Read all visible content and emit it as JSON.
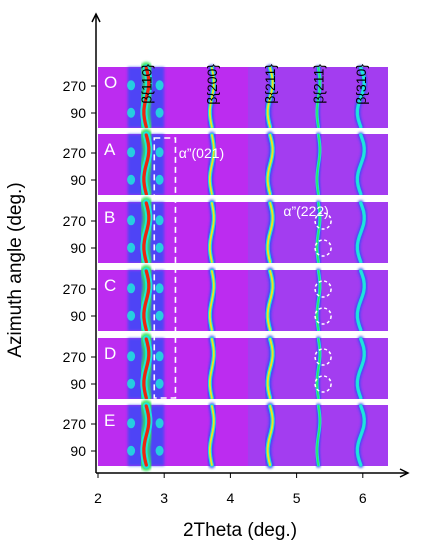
{
  "chart_data": {
    "type": "heatmap",
    "xlabel": "2Theta (deg.)",
    "ylabel": "Azimuth angle (deg.)",
    "xlim": [
      1.95,
      6.5
    ],
    "x_ticks": [
      2,
      3,
      4,
      5,
      6
    ],
    "y_tick_labels": [
      "270",
      "90"
    ],
    "panels": [
      "O",
      "A",
      "B",
      "C",
      "D",
      "E"
    ],
    "peaks": [
      {
        "label": "β{110}",
        "x": 2.73
      },
      {
        "label": "β{200}",
        "x": 3.72
      },
      {
        "label": "β{211}",
        "x": 4.6
      },
      {
        "label": "β{211}",
        "x": 5.33
      },
      {
        "label": "β{310}",
        "x": 5.97
      }
    ],
    "annotations": [
      {
        "text": "α”(021)",
        "panel": "A",
        "x": 3.02
      },
      {
        "text": "α”(222)",
        "panel": "B",
        "x": 5.4
      }
    ],
    "colors": {
      "background": "#a33df0",
      "low": "#d21ff0",
      "mid_blue": "#2a4df8",
      "cyan": "#1ee6dc",
      "green": "#2ee85a",
      "yellow": "#f2e41c",
      "red": "#ee2510",
      "separator": "#ffffff",
      "annotation": "#ffffff"
    }
  }
}
